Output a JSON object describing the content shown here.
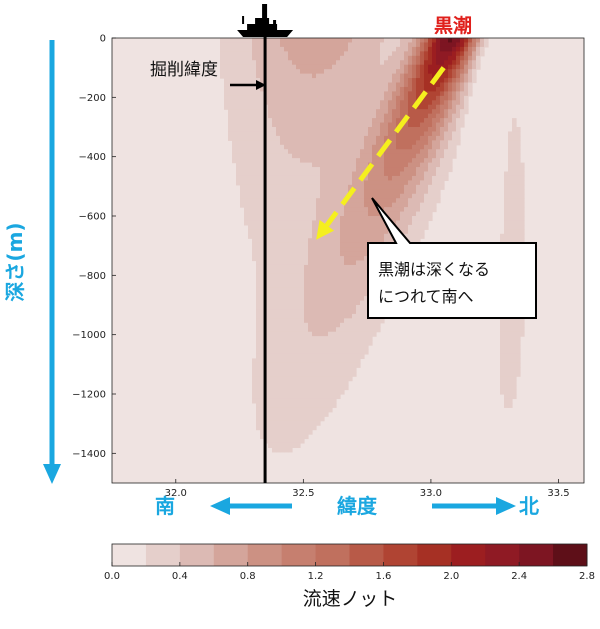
{
  "chart_data": {
    "type": "heatmap",
    "title": "",
    "xlabel": "緯度",
    "ylabel": "深さ(m)",
    "xlim": [
      31.75,
      33.6
    ],
    "ylim": [
      -1500,
      0
    ],
    "x_ticks": [
      "32.0",
      "32.5",
      "33.0",
      "33.5"
    ],
    "x_tick_values": [
      32.0,
      32.5,
      33.0,
      33.5
    ],
    "y_ticks": [
      "0",
      "−200",
      "−400",
      "−600",
      "−800",
      "−1000",
      "−1200",
      "−1400"
    ],
    "y_tick_values": [
      0,
      -200,
      -400,
      -600,
      -800,
      -1000,
      -1200,
      -1400
    ],
    "colorbar": {
      "label": "流速ノット",
      "min": 0.0,
      "max": 2.8,
      "step": 0.2,
      "tick_labels": [
        "0.0",
        "0.4",
        "0.8",
        "1.2",
        "1.6",
        "2.0",
        "2.4",
        "2.8"
      ],
      "tick_values": [
        0.0,
        0.4,
        0.8,
        1.2,
        1.6,
        2.0,
        2.4,
        2.8
      ],
      "colors": [
        "#efe3e1",
        "#e5cfcb",
        "#dcbab4",
        "#d4a59b",
        "#cc9183",
        "#c67f6f",
        "#c0705e",
        "#b85a48",
        "#b04433",
        "#a63024",
        "#9c1e20",
        "#8f1a24",
        "#7d1522",
        "#5e0f18"
      ]
    },
    "core_speed": 2.6,
    "core_latitude": 33.1,
    "core_depth": -100,
    "drilling_latitude": 32.35,
    "trend_line": {
      "start": {
        "lat": 33.05,
        "depth": -100
      },
      "end": {
        "lat": 32.55,
        "depth": -680
      }
    }
  },
  "labels": {
    "current_name": "黒潮",
    "drilling_label": "掘削緯度",
    "south": "南",
    "north": "北",
    "callout_line1": "黒潮は深くなる",
    "callout_line2": "につれて南へ"
  },
  "colors": {
    "accent_cyan": "#1aa7e0",
    "label_red": "#e0201c",
    "trend_yellow": "#f5ef1e"
  },
  "icons": {
    "ship": "ship-icon"
  }
}
